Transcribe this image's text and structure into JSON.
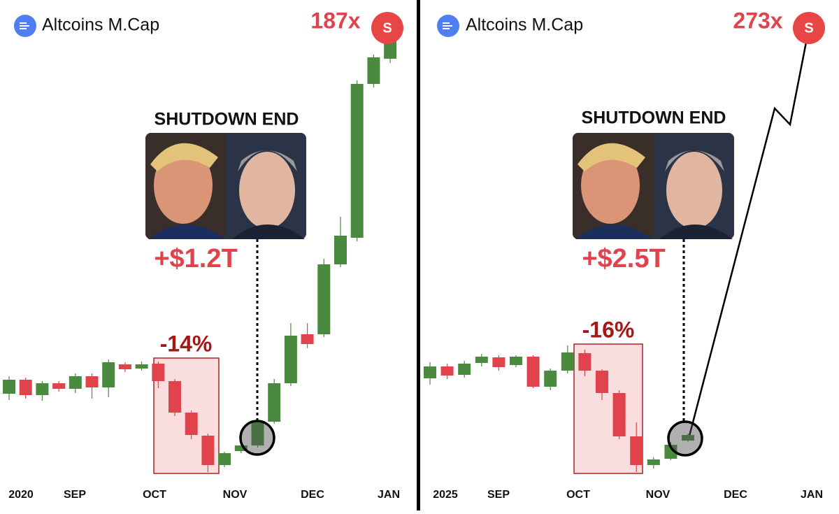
{
  "chart_data": [
    {
      "type": "candlestick",
      "title": "Altcoins M.Cap",
      "multiplier": "187x",
      "avatar": "S",
      "event": "SHUTDOWN END",
      "liquidity": "+$1.2T",
      "drawdown": "-14%",
      "x_labels": [
        "2020",
        "SEP",
        "OCT",
        "NOV",
        "DEC",
        "JAN"
      ],
      "up_color": "#4a8a3f",
      "down_color": "#e0434b",
      "ylim": [
        0,
        650
      ],
      "open": [
        127,
        147,
        125,
        142,
        134,
        152,
        136,
        169,
        163,
        170,
        145,
        100,
        67,
        25,
        45,
        53,
        87,
        142,
        212,
        212,
        312,
        350,
        570,
        606
      ],
      "high": [
        152,
        150,
        145,
        145,
        156,
        156,
        176,
        172,
        173,
        173,
        148,
        103,
        70,
        44,
        56,
        90,
        148,
        228,
        228,
        320,
        380,
        575,
        612,
        645
      ],
      "low": [
        118,
        120,
        117,
        130,
        128,
        120,
        122,
        158,
        160,
        135,
        95,
        62,
        15,
        22,
        42,
        50,
        84,
        138,
        192,
        208,
        308,
        345,
        565,
        600
      ],
      "close": [
        147,
        125,
        142,
        134,
        152,
        136,
        172,
        162,
        169,
        145,
        100,
        68,
        25,
        42,
        53,
        86,
        142,
        210,
        198,
        312,
        353,
        570,
        608,
        640
      ]
    },
    {
      "type": "candlestick",
      "title": "Altcoins M.Cap",
      "multiplier": "273x",
      "avatar": "S",
      "event": "SHUTDOWN END",
      "liquidity": "+$2.5T",
      "drawdown": "-16%",
      "x_labels": [
        "2025",
        "SEP",
        "OCT",
        "NOV",
        "DEC",
        "JAN"
      ],
      "up_color": "#4a8a3f",
      "down_color": "#e0434b",
      "ylim": [
        0,
        650
      ],
      "open": [
        149,
        166,
        154,
        171,
        179,
        168,
        180,
        137,
        160,
        185,
        160,
        128,
        66,
        25,
        34,
        60
      ],
      "high": [
        172,
        170,
        174,
        184,
        182,
        182,
        182,
        163,
        196,
        190,
        162,
        132,
        86,
        36,
        58,
        70
      ],
      "low": [
        140,
        148,
        150,
        166,
        160,
        165,
        135,
        132,
        156,
        152,
        118,
        62,
        15,
        20,
        32,
        58
      ],
      "close": [
        166,
        153,
        170,
        180,
        165,
        180,
        137,
        160,
        186,
        160,
        128,
        66,
        25,
        33,
        54,
        68
      ]
    }
  ]
}
